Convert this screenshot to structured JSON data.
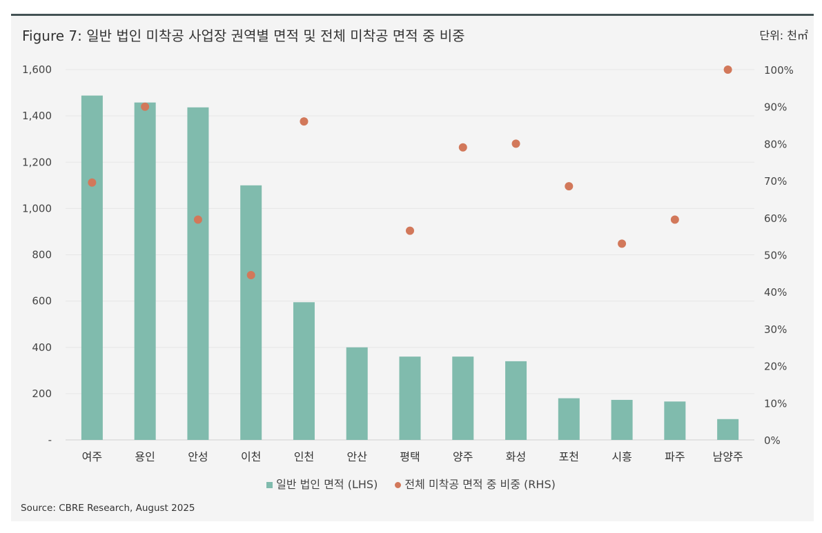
{
  "header": {
    "title": "Figure 7: 일반 법인 미착공 사업장 권역별 면적 및 전체 미착공 면적 중 비중",
    "unit": "단위: 천㎡"
  },
  "footer": {
    "source": "Source: CBRE Research, August 2025"
  },
  "colors": {
    "bar": "#80bbad",
    "dot": "#d2785a",
    "frame_top": "#435254",
    "background": "#f4f4f4"
  },
  "chart_data": {
    "type": "bar",
    "categories": [
      "여주",
      "용인",
      "안성",
      "이천",
      "인천",
      "안산",
      "평택",
      "양주",
      "화성",
      "포천",
      "시흥",
      "파주",
      "남양주"
    ],
    "series": [
      {
        "name": "일반 법인 면적 (LHS)",
        "type": "bar",
        "axis": "left",
        "values": [
          1488,
          1458,
          1437,
          1100,
          595,
          400,
          360,
          360,
          340,
          180,
          173,
          166,
          90
        ]
      },
      {
        "name": "전체 미착공 면적 중 비중 (RHS)",
        "type": "scatter",
        "axis": "right",
        "values": [
          69.5,
          90,
          59.5,
          44.5,
          86,
          null,
          56.5,
          79,
          80,
          68.5,
          53,
          59.5,
          100
        ]
      }
    ],
    "left_axis": {
      "ylim": [
        0,
        1600
      ],
      "ticks": [
        0,
        200,
        400,
        600,
        800,
        1000,
        1200,
        1400,
        1600
      ],
      "tick_labels": [
        "-",
        "200",
        "400",
        "600",
        "800",
        "1,000",
        "1,200",
        "1,400",
        "1,600"
      ]
    },
    "right_axis": {
      "ylim": [
        0,
        100
      ],
      "ticks": [
        0,
        10,
        20,
        30,
        40,
        50,
        60,
        70,
        80,
        90,
        100
      ],
      "tick_labels": [
        "0%",
        "10%",
        "20%",
        "30%",
        "40%",
        "50%",
        "60%",
        "70%",
        "80%",
        "90%",
        "100%"
      ]
    },
    "legend_position": "bottom-center",
    "grid": true
  }
}
